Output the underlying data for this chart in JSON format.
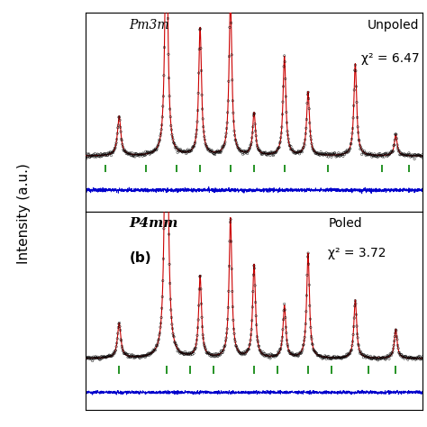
{
  "title_a": "Unpoled",
  "title_b": "Poled",
  "label_a": "Pm3m",
  "label_b": "P4mm",
  "panel_b_label": "(b)",
  "chi2_a": "χ² = 6.47",
  "chi2_b": "χ² = 3.72",
  "ylabel": "Intensity (a.u.)",
  "data_color": "#000000",
  "fit_color": "#cc0000",
  "diff_color": "#0000cc",
  "tick_color": "#008000",
  "background_color": "white",
  "peak_positions_a": [
    0.1,
    0.24,
    0.34,
    0.43,
    0.5,
    0.59,
    0.66,
    0.8,
    0.92
  ],
  "peak_heights_a": [
    0.28,
    1.8,
    0.9,
    1.1,
    0.3,
    0.7,
    0.45,
    0.65,
    0.15
  ],
  "peak_widths_a": [
    0.006,
    0.005,
    0.005,
    0.005,
    0.005,
    0.005,
    0.005,
    0.005,
    0.005
  ],
  "peak_positions_b": [
    0.1,
    0.24,
    0.34,
    0.43,
    0.5,
    0.59,
    0.66,
    0.8,
    0.92
  ],
  "peak_heights_b": [
    0.3,
    3.5,
    0.7,
    1.2,
    0.8,
    0.45,
    0.9,
    0.5,
    0.25
  ],
  "peak_widths_b": [
    0.006,
    0.005,
    0.005,
    0.005,
    0.005,
    0.005,
    0.005,
    0.005,
    0.005
  ],
  "tick_positions_a": [
    0.06,
    0.18,
    0.27,
    0.34,
    0.43,
    0.5,
    0.59,
    0.72,
    0.88,
    0.96
  ],
  "tick_positions_b": [
    0.1,
    0.24,
    0.31,
    0.38,
    0.5,
    0.57,
    0.66,
    0.73,
    0.84,
    0.92
  ],
  "noise_amplitude": 0.008,
  "baseline": 0.04,
  "xmin": 0.0,
  "xmax": 1.0
}
